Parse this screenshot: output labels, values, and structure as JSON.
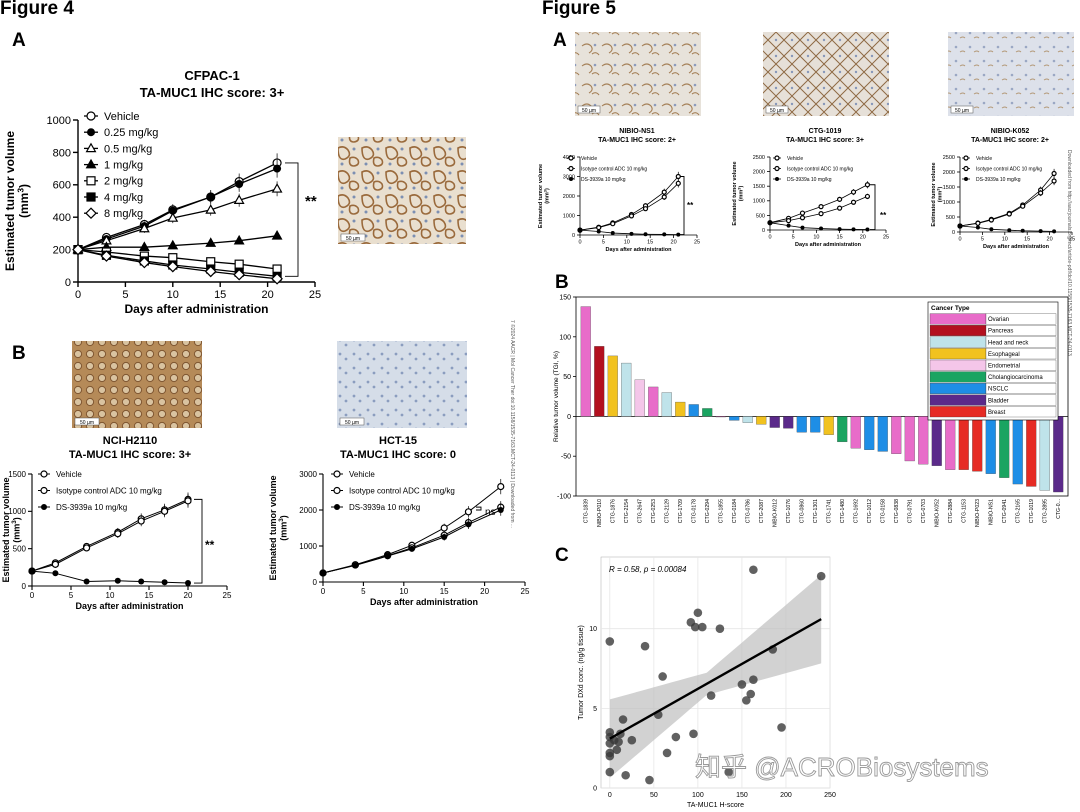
{
  "figures": {
    "fig4": {
      "title": "Figure 4",
      "panel_a": "A",
      "panel_b": "B",
      "a_chart_title1": "CFPAC-1",
      "a_chart_title2": "TA-MUC1 IHC score: 3+",
      "b1_title1": "NCI-H2110",
      "b1_title2": "TA-MUC1 IHC score: 3+",
      "b2_title1": "HCT-15",
      "b2_title2": "TA-MUC1 IHC score: 0",
      "scale_bar": "50 µm",
      "sig_a": "**",
      "sig_b1": "**",
      "sig_b2": "ns",
      "side_watermark": "7 ©2024 AACR | Mol Cancer Ther doi:10.1158/1535-7163.MCT-24-0113 | Downloaded from ..."
    },
    "fig5": {
      "title": "Figure 5",
      "panel_a": "A",
      "panel_b": "B",
      "panel_c": "C",
      "scale_bar": "50 µm",
      "a1_title1": "NIBIO-NS1",
      "a1_title2": "TA-MUC1 IHC score: 2+",
      "a2_title1": "CTG-1019",
      "a2_title2": "TA-MUC1 IHC score: 3+",
      "a3_title1": "NIBIO-K052",
      "a3_title2": "TA-MUC1 IHC score: 2+",
      "sig_a1": "**",
      "sig_a2": "**",
      "side_watermark": "Downloaded from http://aacrjournals.org/mct/article-pdf/doi/10.1158/1535-7163.MCT-24-0113"
    },
    "watermark": "知乎 @ACROBiosystems"
  },
  "colors": {
    "ovarian": "#e86cc9",
    "pancreas": "#b3101f",
    "headneck": "#bfe3ea",
    "esophageal": "#f1c21f",
    "endometrial": "#f4c6e9",
    "cholangio": "#1aa461",
    "nsclc": "#1e8ee6",
    "bladder": "#5b2a8a",
    "breast": "#e62b24"
  },
  "chart_data": [
    {
      "id": "fig4a",
      "type": "line",
      "title": "CFPAC-1 TA-MUC1 IHC score: 3+",
      "xlabel": "Days after administration",
      "ylabel": "Estimated tumor volume (mm3)",
      "xlim": [
        0,
        25
      ],
      "ylim": [
        0,
        1000
      ],
      "xticks": [
        0,
        5,
        10,
        15,
        20,
        25
      ],
      "yticks": [
        0,
        200,
        400,
        600,
        800,
        1000
      ],
      "x": [
        0,
        3,
        7,
        10,
        14,
        17,
        21
      ],
      "series": [
        {
          "name": "Vehicle",
          "marker": "circle-open",
          "values": [
            200,
            275,
            355,
            445,
            525,
            620,
            735
          ]
        },
        {
          "name": "0.25 mg/kg",
          "marker": "circle-filled",
          "values": [
            200,
            265,
            345,
            440,
            525,
            605,
            700
          ]
        },
        {
          "name": "0.5 mg/kg",
          "marker": "triangle-open",
          "values": [
            200,
            255,
            330,
            395,
            445,
            505,
            575
          ]
        },
        {
          "name": "1 mg/kg",
          "marker": "triangle-filled",
          "values": [
            200,
            215,
            215,
            225,
            240,
            255,
            285
          ]
        },
        {
          "name": "2 mg/kg",
          "marker": "square-open",
          "values": [
            200,
            185,
            160,
            150,
            125,
            110,
            80
          ]
        },
        {
          "name": "4 mg/kg",
          "marker": "square-filled",
          "values": [
            200,
            165,
            130,
            105,
            80,
            60,
            35
          ]
        },
        {
          "name": "8 mg/kg",
          "marker": "diamond-open",
          "values": [
            200,
            160,
            120,
            95,
            65,
            45,
            20
          ]
        }
      ]
    },
    {
      "id": "fig4b1",
      "type": "line",
      "title": "NCI-H2110 TA-MUC1 IHC score: 3+",
      "xlabel": "Days after administration",
      "ylabel": "Estimated tumor volume (mm3)",
      "xlim": [
        0,
        25
      ],
      "ylim": [
        0,
        1500
      ],
      "xticks": [
        0,
        5,
        10,
        15,
        20,
        25
      ],
      "yticks": [
        0,
        500,
        1000,
        1500
      ],
      "x": [
        0,
        3,
        7,
        11,
        14,
        17,
        20
      ],
      "series": [
        {
          "name": "Vehicle",
          "marker": "circle-open",
          "values": [
            200,
            310,
            530,
            720,
            900,
            1020,
            1160
          ]
        },
        {
          "name": "Isotype control ADC 10 mg/kg",
          "marker": "circle-open",
          "values": [
            200,
            290,
            510,
            700,
            870,
            1000,
            1140
          ]
        },
        {
          "name": "DS-3939a 10 mg/kg",
          "marker": "circle-filled",
          "values": [
            200,
            170,
            60,
            70,
            60,
            50,
            40
          ]
        }
      ]
    },
    {
      "id": "fig4b2",
      "type": "line",
      "title": "HCT-15 TA-MUC1 IHC score: 0",
      "xlabel": "Days after administration",
      "ylabel": "Estimated tumor volume (mm3)",
      "xlim": [
        0,
        25
      ],
      "ylim": [
        0,
        3000
      ],
      "xticks": [
        0,
        5,
        10,
        15,
        20,
        25
      ],
      "yticks": [
        0,
        1000,
        2000,
        3000
      ],
      "x": [
        0,
        4,
        8,
        11,
        15,
        18,
        22
      ],
      "series": [
        {
          "name": "Vehicle",
          "marker": "circle-open",
          "values": [
            250,
            480,
            760,
            1020,
            1500,
            1950,
            2650
          ]
        },
        {
          "name": "Isotype control ADC 10 mg/kg",
          "marker": "circle-open",
          "values": [
            250,
            470,
            730,
            950,
            1300,
            1650,
            2080
          ]
        },
        {
          "name": "DS-3939a 10 mg/kg",
          "marker": "circle-filled",
          "values": [
            250,
            460,
            720,
            920,
            1250,
            1600,
            2000
          ]
        }
      ]
    },
    {
      "id": "fig5a1",
      "type": "line",
      "title": "NIBIO-NS1 TA-MUC1 IHC score: 2+",
      "xlabel": "Days after administration",
      "ylabel": "Estimated tumor volume (mm3)",
      "xlim": [
        0,
        25
      ],
      "ylim": [
        0,
        4000
      ],
      "xticks": [
        0,
        5,
        10,
        15,
        20,
        25
      ],
      "yticks": [
        0,
        1000,
        2000,
        3000,
        4000
      ],
      "x": [
        0,
        4,
        7,
        11,
        14,
        18,
        21
      ],
      "series": [
        {
          "name": "Vehicle",
          "marker": "circle-open",
          "values": [
            250,
            400,
            620,
            1050,
            1500,
            2200,
            3000
          ]
        },
        {
          "name": "Isotype control ADC 10 mg/kg",
          "marker": "circle-open",
          "values": [
            250,
            380,
            580,
            980,
            1350,
            1950,
            2650
          ]
        },
        {
          "name": "DS-3939a 10 mg/kg",
          "marker": "circle-filled",
          "values": [
            250,
            180,
            100,
            60,
            40,
            30,
            20
          ]
        }
      ]
    },
    {
      "id": "fig5a2",
      "type": "line",
      "title": "CTG-1019 TA-MUC1 IHC score: 3+",
      "xlabel": "Days after administration",
      "ylabel": "Estimated tumor volume (mm3)",
      "xlim": [
        0,
        25
      ],
      "ylim": [
        0,
        2500
      ],
      "xticks": [
        0,
        5,
        10,
        15,
        20,
        25
      ],
      "yticks": [
        0,
        500,
        1000,
        1500,
        2000,
        2500
      ],
      "x": [
        0,
        4,
        7,
        11,
        15,
        18,
        21
      ],
      "series": [
        {
          "name": "Vehicle",
          "marker": "circle-open",
          "values": [
            250,
            400,
            580,
            800,
            1050,
            1300,
            1550
          ]
        },
        {
          "name": "Isotype control ADC 10 mg/kg",
          "marker": "circle-open",
          "values": [
            250,
            320,
            420,
            560,
            750,
            950,
            1150
          ]
        },
        {
          "name": "DS-3939a 10 mg/kg",
          "marker": "circle-filled",
          "values": [
            250,
            150,
            80,
            50,
            30,
            20,
            15
          ]
        }
      ]
    },
    {
      "id": "fig5a3",
      "type": "line",
      "title": "NIBIO-K052 TA-MUC1 IHC score: 2+",
      "xlabel": "Days after administration",
      "ylabel": "Estimated tumor volume (mm3)",
      "xlim": [
        0,
        25
      ],
      "ylim": [
        0,
        2500
      ],
      "xticks": [
        0,
        5,
        10,
        15,
        20,
        25
      ],
      "yticks": [
        0,
        500,
        1000,
        1500,
        2000,
        2500
      ],
      "x": [
        0,
        4,
        7,
        11,
        14,
        18,
        21
      ],
      "series": [
        {
          "name": "Vehicle",
          "marker": "circle-open",
          "values": [
            200,
            300,
            420,
            620,
            900,
            1400,
            1950
          ]
        },
        {
          "name": "Isotype control ADC 10 mg/kg",
          "marker": "circle-open",
          "values": [
            200,
            290,
            400,
            600,
            860,
            1300,
            1700
          ]
        },
        {
          "name": "DS-3939a 10 mg/kg",
          "marker": "circle-filled",
          "values": [
            200,
            150,
            90,
            60,
            40,
            30,
            20
          ]
        }
      ]
    },
    {
      "id": "fig5b",
      "type": "bar",
      "ylabel": "Relative tumor volume (TGI, %)",
      "ylim": [
        -100,
        150
      ],
      "yticks": [
        -100,
        -50,
        0,
        50,
        100,
        150
      ],
      "legend_title": "Cancer Type",
      "legend": [
        "Ovarian",
        "Pancreas",
        "Head and neck",
        "Esophageal",
        "Endometrial",
        "Cholangiocarcinoma",
        "NSCLC",
        "Bladder",
        "Breast"
      ],
      "categories": [
        "CTG-1839",
        "NIBIO-P010",
        "CTG-1876",
        "CTG-2154",
        "CTG-2647",
        "CTG-0253",
        "CTG-2129",
        "CTG-1709",
        "CTG-0178",
        "CTG-0294",
        "CTG-1855",
        "CTG-0184",
        "CTG-0786",
        "CTG-2087",
        "NIBIO-K012",
        "CTG-1076",
        "CTG-0860",
        "CTG-1301",
        "CTG-1741",
        "CTG-1480",
        "CTG-1692",
        "CTG-1012",
        "CTG-0158",
        "CTG-0838",
        "CTG-0791",
        "CTG-0703",
        "NIBIO-K052",
        "CTG-2884",
        "CTG-1153",
        "NIBIO-P023",
        "NIBIO-NS1",
        "CTG-0941",
        "CTG-2165",
        "CTG-1019",
        "CTG-2895",
        "CTG-0..."
      ],
      "values": [
        138,
        88,
        76,
        67,
        46,
        37,
        30,
        18,
        15,
        10,
        0,
        -5,
        -8,
        -10,
        -14,
        -15,
        -20,
        -20,
        -23,
        -32,
        -40,
        -42,
        -44,
        -47,
        -56,
        -60,
        -62,
        -67,
        -67,
        -69,
        -72,
        -77,
        -85,
        -88,
        -93,
        -95
      ],
      "groups": [
        "ovarian",
        "pancreas",
        "esophageal",
        "headneck",
        "endometrial",
        "ovarian",
        "headneck",
        "esophageal",
        "nsclc",
        "cholangio",
        "ovarian",
        "nsclc",
        "headneck",
        "esophageal",
        "bladder",
        "bladder",
        "nsclc",
        "nsclc",
        "esophageal",
        "cholangio",
        "ovarian",
        "nsclc",
        "nsclc",
        "ovarian",
        "ovarian",
        "ovarian",
        "bladder",
        "ovarian",
        "breast",
        "breast",
        "nsclc",
        "cholangio",
        "nsclc",
        "breast",
        "headneck",
        "bladder"
      ]
    },
    {
      "id": "fig5c",
      "type": "scatter",
      "annotation": "R = 0.58, p = 0.00084",
      "xlabel": "TA-MUC1 H-score",
      "ylabel": "Tumor DXd conc. (ng/g tissue)",
      "xlim": [
        -10,
        250
      ],
      "ylim": [
        0,
        14.5
      ],
      "xticks": [
        0,
        50,
        100,
        150,
        200,
        250
      ],
      "yticks": [
        0,
        5,
        10
      ],
      "fit": {
        "x0": 0,
        "y0": 3.1,
        "x1": 240,
        "y1": 10.6
      },
      "points": [
        [
          0,
          9.2
        ],
        [
          0,
          3.5
        ],
        [
          0,
          3.2
        ],
        [
          0,
          2.8
        ],
        [
          0,
          2.2
        ],
        [
          0,
          2.0
        ],
        [
          0,
          1.0
        ],
        [
          5,
          3.0
        ],
        [
          8,
          2.4
        ],
        [
          10,
          2.9
        ],
        [
          12,
          3.4
        ],
        [
          15,
          4.3
        ],
        [
          18,
          0.8
        ],
        [
          25,
          3.0
        ],
        [
          40,
          8.9
        ],
        [
          45,
          0.5
        ],
        [
          55,
          4.6
        ],
        [
          60,
          7.0
        ],
        [
          65,
          2.2
        ],
        [
          75,
          3.2
        ],
        [
          92,
          10.4
        ],
        [
          95,
          3.4
        ],
        [
          97,
          10.1
        ],
        [
          100,
          11.0
        ],
        [
          105,
          10.1
        ],
        [
          115,
          5.8
        ],
        [
          125,
          10.0
        ],
        [
          135,
          1.0
        ],
        [
          150,
          6.5
        ],
        [
          155,
          5.5
        ],
        [
          160,
          5.9
        ],
        [
          163,
          13.7
        ],
        [
          163,
          6.8
        ],
        [
          185,
          8.7
        ],
        [
          195,
          3.8
        ],
        [
          240,
          13.3
        ]
      ]
    }
  ]
}
